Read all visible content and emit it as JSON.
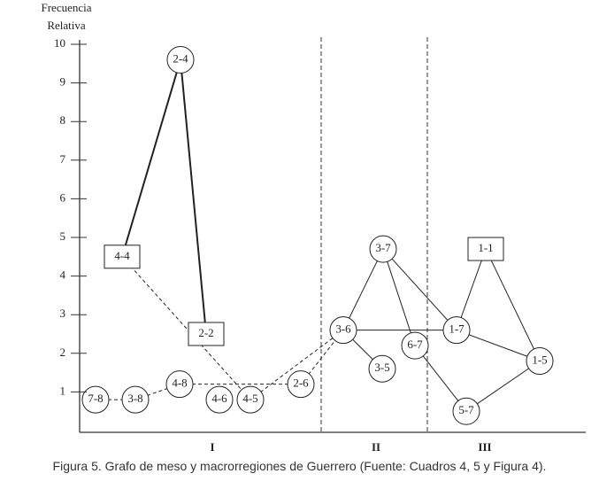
{
  "axis": {
    "label_lines": [
      "Frecuencia",
      "Relativa"
    ],
    "ylim": [
      0,
      10
    ],
    "yticks": [
      1,
      2,
      3,
      4,
      5,
      6,
      7,
      8,
      9,
      10
    ]
  },
  "nodes": [
    {
      "label": "7-8",
      "shape": "circle",
      "y": 0.8
    },
    {
      "label": "3-8",
      "shape": "circle",
      "y": 0.8
    },
    {
      "label": "4-8",
      "shape": "circle",
      "y": 1.2
    },
    {
      "label": "4-6",
      "shape": "circle",
      "y": 0.8
    },
    {
      "label": "4-5",
      "shape": "circle",
      "y": 0.8
    },
    {
      "label": "2-6",
      "shape": "circle",
      "y": 1.2
    },
    {
      "label": "4-4",
      "shape": "square",
      "y": 4.5
    },
    {
      "label": "2-4",
      "shape": "circle",
      "y": 9.6
    },
    {
      "label": "2-2",
      "shape": "square",
      "y": 2.5
    },
    {
      "label": "3-7",
      "shape": "circle",
      "y": 4.7
    },
    {
      "label": "3-6",
      "shape": "circle",
      "y": 2.6
    },
    {
      "label": "3-5",
      "shape": "circle",
      "y": 1.6
    },
    {
      "label": "6-7",
      "shape": "circle",
      "y": 2.2
    },
    {
      "label": "1-7",
      "shape": "circle",
      "y": 2.6
    },
    {
      "label": "1-1",
      "shape": "square",
      "y": 4.7
    },
    {
      "label": "1-5",
      "shape": "circle",
      "y": 1.8
    },
    {
      "label": "5-7",
      "shape": "circle",
      "y": 0.5
    }
  ],
  "edges": [
    [
      "4-4",
      "2-4",
      "thick"
    ],
    [
      "2-4",
      "2-2",
      "thick"
    ],
    [
      "7-8",
      "3-8",
      "dashed"
    ],
    [
      "3-8",
      "4-8",
      "dashed"
    ],
    [
      "4-8",
      "2-6",
      "dashed"
    ],
    [
      "4-4",
      "4-5",
      "dashed"
    ],
    [
      "4-5",
      "3-6",
      "dashed"
    ],
    [
      "2-6",
      "3-6",
      "dashed"
    ],
    [
      "3-7",
      "3-6",
      "solid"
    ],
    [
      "3-7",
      "6-7",
      "solid"
    ],
    [
      "3-7",
      "1-7",
      "solid"
    ],
    [
      "3-6",
      "3-5",
      "solid"
    ],
    [
      "3-6",
      "1-7",
      "solid"
    ],
    [
      "6-7",
      "5-7",
      "solid"
    ],
    [
      "5-7",
      "1-5",
      "solid"
    ],
    [
      "1-7",
      "1-5",
      "solid"
    ],
    [
      "1-1",
      "1-7",
      "solid"
    ],
    [
      "1-1",
      "1-5",
      "solid"
    ]
  ],
  "regions": [
    "I",
    "II",
    "III"
  ],
  "caption": "Figura 5. Grafo de meso y macrorregiones de Guerrero (Fuente: Cuadros 4, 5 y Figura 4)."
}
